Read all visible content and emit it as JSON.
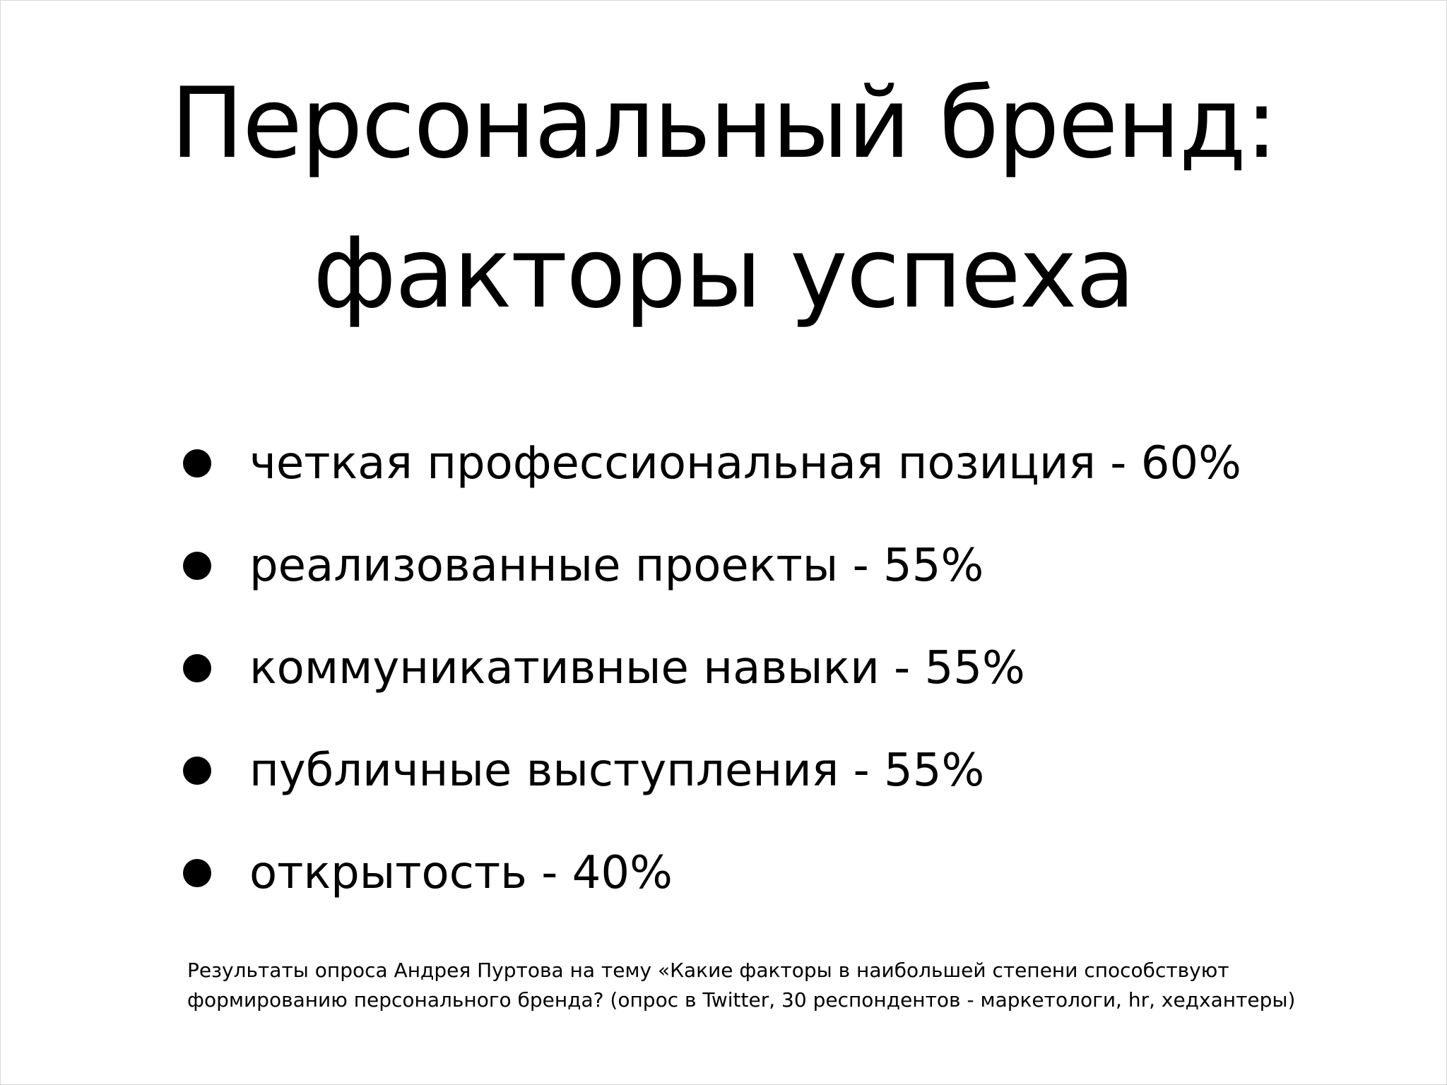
{
  "slide": {
    "title_lines": [
      "Персональный бренд:",
      "факторы успеха"
    ],
    "bullets": [
      "четкая профессиональная позиция - 60%",
      "реализованные проекты - 55%",
      "коммуникативные навыки - 55%",
      "публичные выступления - 55%",
      "открытость - 40%"
    ],
    "footnote_lines": [
      "Результаты опроса Андрея Пуртова на тему «Какие факторы в наибольшей степени способствуют",
      "формированию персонального бренда? (опрос в Twitter, 30 респондентов - маркетологи, hr, хедхантеры)"
    ]
  }
}
